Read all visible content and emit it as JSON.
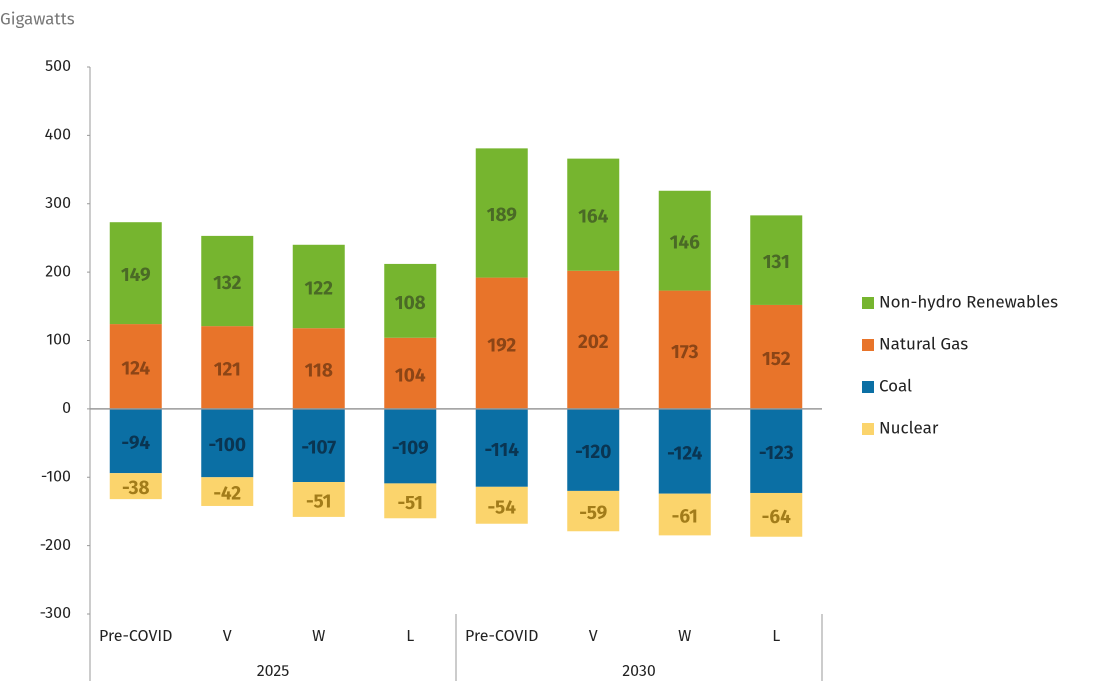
{
  "chart_data": {
    "type": "bar",
    "stacked": true,
    "subtitle": "Gigawatts",
    "groups": [
      {
        "name": "2025",
        "categories": [
          "Pre-COVID",
          "V",
          "W",
          "L"
        ]
      },
      {
        "name": "2030",
        "categories": [
          "Pre-COVID",
          "V",
          "W",
          "L"
        ]
      }
    ],
    "series": [
      {
        "name": "Non-hydro Renewables",
        "color": "#76b52f",
        "label_color": "#4a6a26",
        "values": [
          149,
          132,
          122,
          108,
          189,
          164,
          146,
          131
        ]
      },
      {
        "name": "Natural Gas",
        "color": "#e8742a",
        "label_color": "#8c4516",
        "values": [
          124,
          121,
          118,
          104,
          192,
          202,
          173,
          152
        ]
      },
      {
        "name": "Coal",
        "color": "#0b6fa4",
        "label_color": "#0a3552",
        "values": [
          -94,
          -100,
          -107,
          -109,
          -114,
          -120,
          -124,
          -123
        ]
      },
      {
        "name": "Nuclear",
        "color": "#fbd46c",
        "label_color": "#a27c1a",
        "values": [
          -38,
          -42,
          -51,
          -51,
          -54,
          -59,
          -61,
          -64
        ]
      }
    ],
    "ylim": [
      -300,
      500
    ],
    "yticks": [
      -300,
      -200,
      -100,
      0,
      100,
      200,
      300,
      400,
      500
    ],
    "legend": "right"
  }
}
